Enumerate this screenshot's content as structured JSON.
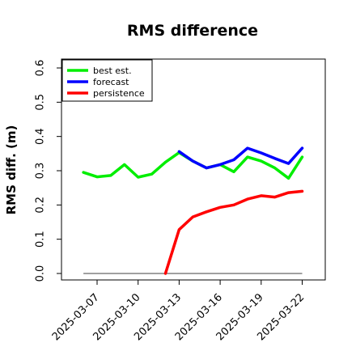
{
  "chart_data": {
    "type": "line",
    "title": "RMS difference",
    "xlabel": "",
    "ylabel": "RMS diff. (m)",
    "ylim": [
      0,
      0.62
    ],
    "yticks": [
      "0.0",
      "0.1",
      "0.2",
      "0.3",
      "0.4",
      "0.5",
      "0.6"
    ],
    "xticks": [
      "2025-03-07",
      "2025-03-10",
      "2025-03-13",
      "2025-03-16",
      "2025-03-19",
      "2025-03-22"
    ],
    "highlight_tick": "2025-03-13",
    "highlight_color": "#228B22",
    "legend_position": "top-left",
    "series": [
      {
        "name": "best est.",
        "color": "#00ee00",
        "x": [
          "2025-03-06",
          "2025-03-07",
          "2025-03-08",
          "2025-03-09",
          "2025-03-10",
          "2025-03-11",
          "2025-03-12",
          "2025-03-13",
          "2025-03-14",
          "2025-03-15",
          "2025-03-16",
          "2025-03-17",
          "2025-03-18",
          "2025-03-19",
          "2025-03-20",
          "2025-03-21",
          "2025-03-22"
        ],
        "y": [
          0.295,
          0.282,
          0.286,
          0.318,
          0.281,
          0.29,
          0.325,
          0.353,
          0.328,
          0.308,
          0.318,
          0.297,
          0.34,
          0.328,
          0.308,
          0.278,
          0.34
        ]
      },
      {
        "name": "forecast",
        "color": "#0000ff",
        "x": [
          "2025-03-13",
          "2025-03-14",
          "2025-03-15",
          "2025-03-16",
          "2025-03-17",
          "2025-03-18",
          "2025-03-19",
          "2025-03-20",
          "2025-03-21",
          "2025-03-22"
        ],
        "y": [
          0.356,
          0.328,
          0.308,
          0.318,
          0.332,
          0.366,
          0.352,
          0.336,
          0.321,
          0.366
        ]
      },
      {
        "name": "persistence",
        "color": "#ff0000",
        "x": [
          "2025-03-12",
          "2025-03-13",
          "2025-03-14",
          "2025-03-15",
          "2025-03-16",
          "2025-03-17",
          "2025-03-18",
          "2025-03-19",
          "2025-03-20",
          "2025-03-21",
          "2025-03-22"
        ],
        "y": [
          0.0,
          0.128,
          0.165,
          0.18,
          0.193,
          0.2,
          0.217,
          0.227,
          0.223,
          0.236,
          0.24
        ]
      }
    ],
    "baseline": {
      "y": 0,
      "color": "#808080"
    }
  }
}
